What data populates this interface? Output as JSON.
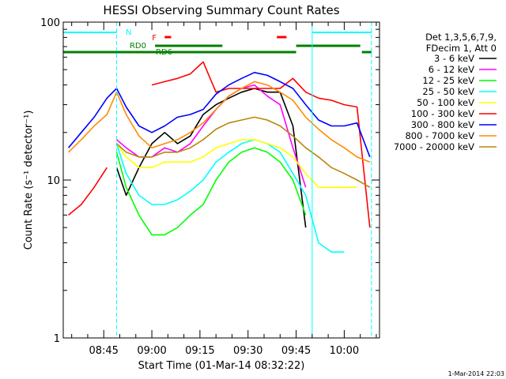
{
  "chart_data": {
    "type": "line",
    "title": "HESSI Observing Summary Count Rates",
    "xlabel": "Start Time (01-Mar-14 08:32:22)",
    "ylabel": "Count Rate (s⁻¹ detector⁻¹)",
    "y_scale": "log",
    "ylim": [
      1,
      100
    ],
    "xlim": [
      "08:32:22",
      "10:11:00"
    ],
    "x_ticks": [
      "08:45",
      "09:00",
      "09:15",
      "09:30",
      "09:45",
      "10:00"
    ],
    "y_ticks": [
      "1",
      "10",
      "100"
    ],
    "grid": false,
    "legend_position": "right",
    "legend_header": [
      "Det 1,3,5,6,7,9,",
      "FDecim 1, Att 0"
    ],
    "series": [
      {
        "name": "3 - 6 keV",
        "color": "#000000",
        "x": [
          "08:34",
          "08:38",
          "08:42",
          "08:46",
          "08:49",
          "08:52",
          "08:56",
          "09:00",
          "09:04",
          "09:08",
          "09:12",
          "09:16",
          "09:20",
          "09:24",
          "09:28",
          "09:32",
          "09:36",
          "09:40",
          "09:44",
          "09:48",
          "09:52",
          "09:56",
          "10:00",
          "10:04",
          "10:08"
        ],
        "y": [
          null,
          null,
          null,
          null,
          12,
          8,
          12,
          17,
          20,
          17,
          19,
          26,
          30,
          33,
          36,
          38,
          36,
          36,
          22,
          5,
          null,
          null,
          null,
          null,
          null
        ]
      },
      {
        "name": "6 - 12 keV",
        "color": "#ff00ff",
        "x": [
          "08:34",
          "08:38",
          "08:42",
          "08:46",
          "08:49",
          "08:52",
          "08:56",
          "09:00",
          "09:04",
          "09:08",
          "09:12",
          "09:16",
          "09:20",
          "09:24",
          "09:28",
          "09:32",
          "09:36",
          "09:40",
          "09:44",
          "09:48",
          "09:52",
          "09:56",
          "10:00",
          "10:04",
          "10:08"
        ],
        "y": [
          null,
          null,
          null,
          null,
          18,
          16,
          14,
          14,
          16,
          15,
          17,
          22,
          28,
          34,
          38,
          40,
          34,
          30,
          16,
          9,
          null,
          null,
          null,
          null,
          null
        ]
      },
      {
        "name": "12 - 25 keV",
        "color": "#00ff00",
        "x": [
          "08:34",
          "08:38",
          "08:42",
          "08:46",
          "08:49",
          "08:52",
          "08:56",
          "09:00",
          "09:04",
          "09:08",
          "09:12",
          "09:16",
          "09:20",
          "09:24",
          "09:28",
          "09:32",
          "09:36",
          "09:40",
          "09:44",
          "09:48",
          "09:52",
          "09:56",
          "10:00",
          "10:04",
          "10:08"
        ],
        "y": [
          null,
          null,
          null,
          null,
          15,
          9,
          6,
          4.5,
          4.5,
          5,
          6,
          7,
          10,
          13,
          15,
          16,
          15,
          13,
          10,
          6,
          null,
          null,
          null,
          null,
          null
        ]
      },
      {
        "name": "25 - 50 keV",
        "color": "#00ffff",
        "x": [
          "08:34",
          "08:38",
          "08:42",
          "08:46",
          "08:49",
          "08:52",
          "08:56",
          "09:00",
          "09:04",
          "09:08",
          "09:12",
          "09:16",
          "09:20",
          "09:24",
          "09:28",
          "09:32",
          "09:36",
          "09:40",
          "09:44",
          "09:48",
          "09:52",
          "09:56",
          "10:00",
          "10:04",
          "10:08"
        ],
        "y": [
          null,
          null,
          null,
          null,
          17,
          11,
          8,
          7,
          7,
          7.5,
          8.5,
          10,
          13,
          15,
          17,
          18,
          17,
          15,
          11,
          8,
          4,
          3.5,
          3.5,
          null,
          null
        ]
      },
      {
        "name": "50 - 100 keV",
        "color": "#ffff00",
        "x": [
          "08:34",
          "08:38",
          "08:42",
          "08:46",
          "08:49",
          "08:52",
          "08:56",
          "09:00",
          "09:04",
          "09:08",
          "09:12",
          "09:16",
          "09:20",
          "09:24",
          "09:28",
          "09:32",
          "09:36",
          "09:40",
          "09:44",
          "09:48",
          "09:52",
          "09:56",
          "10:00",
          "10:04",
          "10:08"
        ],
        "y": [
          null,
          null,
          null,
          null,
          17,
          14,
          12,
          12,
          13,
          13,
          13,
          14,
          16,
          17,
          18,
          18,
          17,
          16,
          14,
          11,
          9,
          9,
          9,
          9,
          null
        ]
      },
      {
        "name": "100 - 300 keV",
        "color": "#ff0000",
        "x": [
          "08:34",
          "08:38",
          "08:42",
          "08:46",
          "08:49",
          "08:52",
          "08:56",
          "09:00",
          "09:04",
          "09:08",
          "09:12",
          "09:16",
          "09:20",
          "09:24",
          "09:28",
          "09:32",
          "09:36",
          "09:40",
          "09:44",
          "09:48",
          "09:52",
          "09:56",
          "10:00",
          "10:04",
          "10:08"
        ],
        "y": [
          6,
          7,
          9,
          12,
          null,
          null,
          null,
          40,
          42,
          44,
          47,
          56,
          36,
          38,
          38,
          38,
          38,
          38,
          44,
          36,
          33,
          32,
          30,
          29,
          5
        ]
      },
      {
        "name": "300 - 800 keV",
        "color": "#0000ff",
        "x": [
          "08:34",
          "08:38",
          "08:42",
          "08:46",
          "08:49",
          "08:52",
          "08:56",
          "09:00",
          "09:04",
          "09:08",
          "09:12",
          "09:16",
          "09:20",
          "09:24",
          "09:28",
          "09:32",
          "09:36",
          "09:40",
          "09:44",
          "09:48",
          "09:52",
          "09:56",
          "10:00",
          "10:04",
          "10:08"
        ],
        "y": [
          16,
          20,
          25,
          33,
          38,
          29,
          22,
          20,
          22,
          25,
          26,
          28,
          35,
          40,
          44,
          48,
          46,
          42,
          38,
          30,
          24,
          22,
          22,
          23,
          14
        ]
      },
      {
        "name": "800 - 7000 keV",
        "color": "#ff8c00",
        "x": [
          "08:34",
          "08:38",
          "08:42",
          "08:46",
          "08:49",
          "08:52",
          "08:56",
          "09:00",
          "09:04",
          "09:08",
          "09:12",
          "09:16",
          "09:20",
          "09:24",
          "09:28",
          "09:32",
          "09:36",
          "09:40",
          "09:44",
          "09:48",
          "09:52",
          "09:56",
          "10:00",
          "10:04",
          "10:08"
        ],
        "y": [
          15,
          18,
          22,
          26,
          36,
          26,
          19,
          16,
          17,
          18,
          20,
          23,
          28,
          34,
          38,
          42,
          40,
          36,
          32,
          25,
          21,
          18,
          16,
          14,
          13
        ]
      },
      {
        "name": "7000 - 20000 keV",
        "color": "#b8860b",
        "x": [
          "08:34",
          "08:38",
          "08:42",
          "08:46",
          "08:49",
          "08:52",
          "08:56",
          "09:00",
          "09:04",
          "09:08",
          "09:12",
          "09:16",
          "09:20",
          "09:24",
          "09:28",
          "09:32",
          "09:36",
          "09:40",
          "09:44",
          "09:48",
          "09:52",
          "09:56",
          "10:00",
          "10:04",
          "10:08"
        ],
        "y": [
          null,
          null,
          null,
          null,
          17,
          15,
          14,
          14,
          15,
          15,
          16,
          18,
          21,
          23,
          24,
          25,
          24,
          22,
          19,
          16,
          14,
          12,
          11,
          10,
          9
        ]
      }
    ],
    "flags": [
      {
        "label": "N",
        "color": "#00ffff",
        "segments": [
          [
            "08:32:22",
            "08:49:00"
          ],
          [
            "09:50:00",
            "10:08:30"
          ]
        ]
      },
      {
        "label": "F",
        "color": "#ff0000",
        "segments": [
          [
            "09:04:00",
            "09:06:00"
          ],
          [
            "09:39:00",
            "09:42:00"
          ]
        ]
      },
      {
        "label": "RD0",
        "color": "#008000",
        "segments": [
          [
            "09:01:00",
            "09:22:00"
          ],
          [
            "09:45:00",
            "10:05:00"
          ]
        ]
      },
      {
        "label": "RD6",
        "color": "#008000",
        "segments": [
          [
            "08:32:22",
            "09:45:00"
          ],
          [
            "10:05:30",
            "10:08:30"
          ]
        ]
      }
    ],
    "vertical_markers": [
      {
        "color": "#00ffff",
        "style": "dashed",
        "x": "08:49:00"
      },
      {
        "color": "#00ffff",
        "style": "solid",
        "x": "09:50:00"
      },
      {
        "color": "#00ffff",
        "style": "dashed",
        "x": "10:08:30"
      }
    ]
  },
  "footer": {
    "timestamp": "1-Mar-2014 22:03"
  }
}
